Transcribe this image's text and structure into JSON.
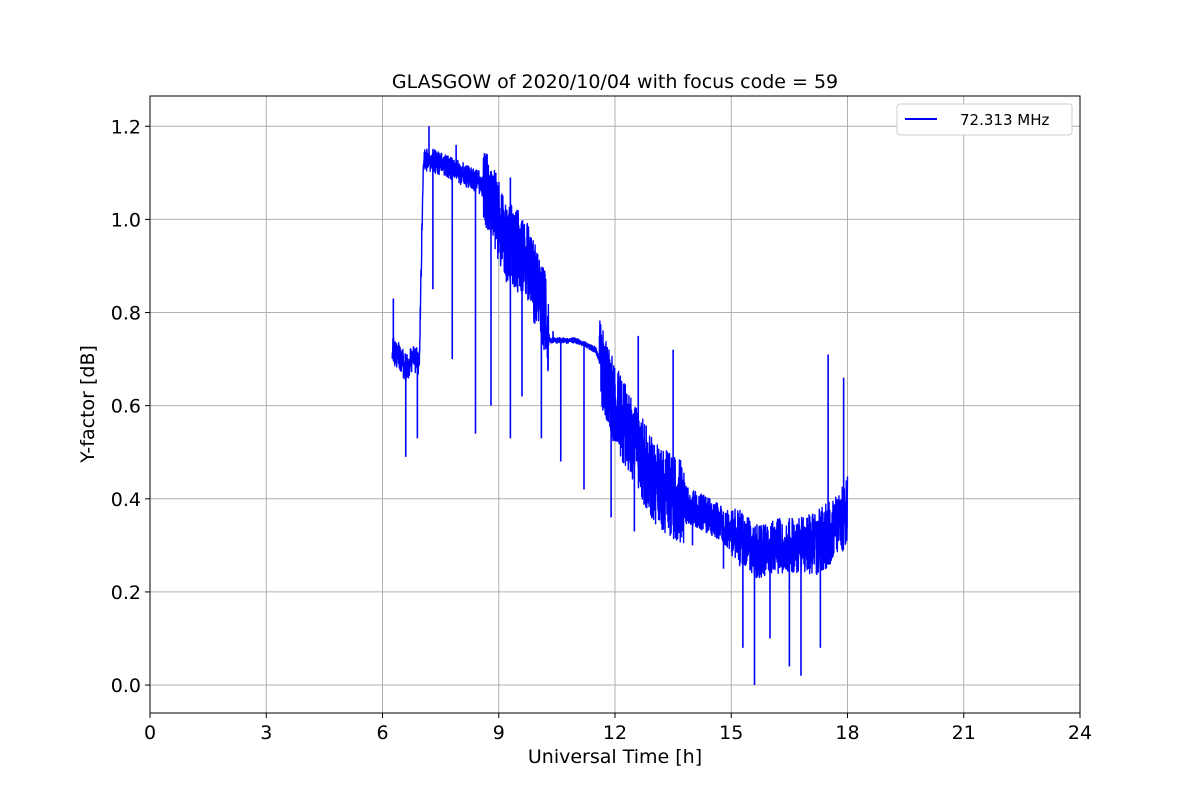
{
  "chart_data": {
    "type": "line",
    "title": "GLASGOW of 2020/10/04 with focus code = 59",
    "xlabel": "Universal Time [h]",
    "ylabel": "Y-factor [dB]",
    "xlim": [
      0,
      24
    ],
    "ylim": [
      -0.06,
      1.265
    ],
    "xticks": [
      "0",
      "3",
      "6",
      "9",
      "12",
      "15",
      "18",
      "21",
      "24"
    ],
    "yticks": [
      "0.0",
      "0.2",
      "0.4",
      "0.6",
      "0.8",
      "1.0",
      "1.2"
    ],
    "grid": true,
    "legend_position": "top-right",
    "colors": {
      "series": "#0000ff",
      "grid": "#b0b0b0",
      "axes": "#000000"
    },
    "series": [
      {
        "name": "72.313 MHz",
        "trend_x": [
          6.25,
          6.4,
          6.6,
          6.8,
          6.95,
          7.05,
          7.15,
          7.5,
          8.0,
          8.5,
          8.8,
          9.0,
          9.2,
          9.5,
          9.8,
          10.0,
          10.2,
          10.3,
          10.5,
          11.0,
          11.5,
          11.8,
          12.0,
          12.3,
          12.6,
          13.0,
          13.5,
          14.0,
          14.5,
          15.0,
          15.3,
          15.6,
          15.8,
          16.0,
          16.5,
          17.0,
          17.3,
          17.6,
          17.9,
          18.0
        ],
        "trend_y": [
          0.72,
          0.71,
          0.68,
          0.7,
          0.69,
          1.12,
          1.13,
          1.12,
          1.1,
          1.08,
          1.04,
          1.0,
          0.95,
          0.93,
          0.9,
          0.84,
          0.8,
          0.74,
          0.74,
          0.74,
          0.72,
          0.65,
          0.6,
          0.55,
          0.5,
          0.44,
          0.4,
          0.38,
          0.36,
          0.33,
          0.31,
          0.29,
          0.29,
          0.3,
          0.3,
          0.3,
          0.31,
          0.33,
          0.36,
          0.38
        ],
        "peaks_x": [
          6.28,
          7.2,
          7.9,
          8.7,
          9.3,
          10.4,
          11.6,
          12.6,
          13.5,
          15.1,
          17.5,
          17.9
        ],
        "peaks_y": [
          0.83,
          1.2,
          1.16,
          1.14,
          1.09,
          0.76,
          0.75,
          0.75,
          0.72,
          0.36,
          0.71,
          0.66
        ],
        "dips_x": [
          6.6,
          6.9,
          7.3,
          7.8,
          8.4,
          8.8,
          9.3,
          9.6,
          10.1,
          10.6,
          11.2,
          11.9,
          12.5,
          13.2,
          14.0,
          14.8,
          15.3,
          15.6,
          16.0,
          16.5,
          16.8,
          17.3
        ],
        "dips_y": [
          0.49,
          0.53,
          0.85,
          0.7,
          0.54,
          0.6,
          0.53,
          0.62,
          0.53,
          0.48,
          0.42,
          0.36,
          0.33,
          0.38,
          0.3,
          0.25,
          0.08,
          0.0,
          0.1,
          0.04,
          0.02,
          0.08
        ]
      }
    ]
  }
}
